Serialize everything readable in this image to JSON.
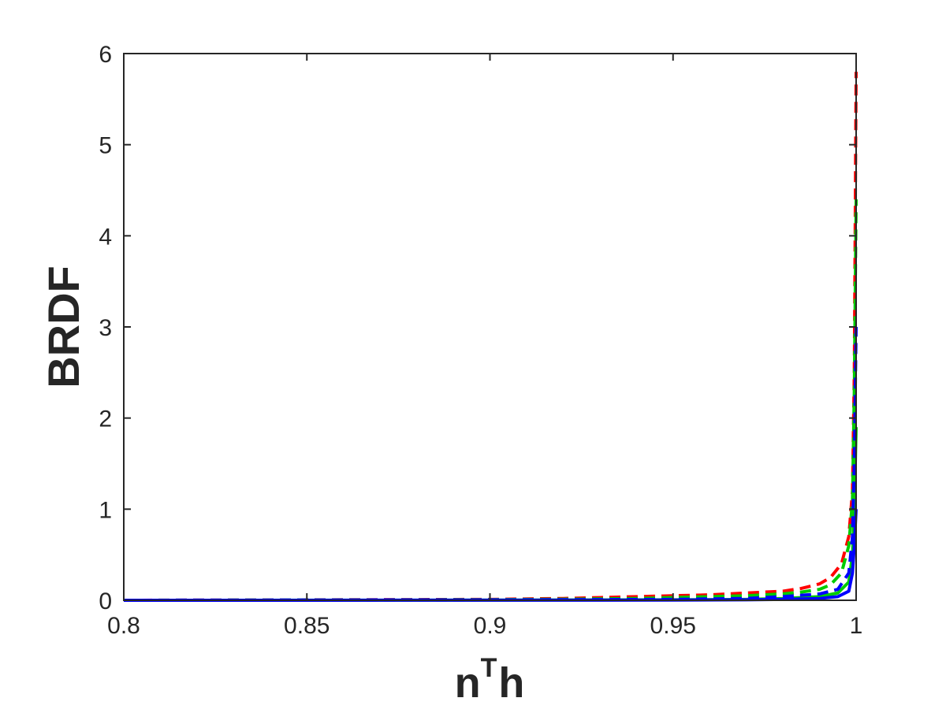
{
  "chart_data": {
    "type": "line",
    "xlabel": "n",
    "xlabel_superscript": "T",
    "xlabel_suffix": "h",
    "ylabel": "BRDF",
    "xlim": [
      0.8,
      1.0
    ],
    "ylim": [
      0,
      6
    ],
    "x_ticks": [
      "0.8",
      "0.85",
      "0.9",
      "0.95",
      "1"
    ],
    "y_ticks": [
      "0",
      "1",
      "2",
      "3",
      "4",
      "5",
      "6"
    ],
    "x_tick_values": [
      0.8,
      0.85,
      0.9,
      0.95,
      1.0
    ],
    "y_tick_values": [
      0,
      1,
      2,
      3,
      4,
      5,
      6
    ],
    "grid": false,
    "series": [
      {
        "color": "#ff0000",
        "style": "dashed",
        "x": [
          0.8,
          0.85,
          0.9,
          0.92,
          0.94,
          0.95,
          0.96,
          0.97,
          0.98,
          0.985,
          0.99,
          0.993,
          0.996,
          0.998,
          0.999,
          0.9995,
          1.0
        ],
        "y": [
          0.0,
          0.005,
          0.01,
          0.02,
          0.04,
          0.05,
          0.06,
          0.08,
          0.1,
          0.13,
          0.18,
          0.25,
          0.4,
          0.7,
          1.2,
          2.5,
          5.8
        ]
      },
      {
        "color": "#00cc00",
        "style": "dashed",
        "x": [
          0.8,
          0.85,
          0.9,
          0.92,
          0.94,
          0.95,
          0.96,
          0.97,
          0.98,
          0.985,
          0.99,
          0.993,
          0.996,
          0.998,
          0.999,
          0.9995,
          1.0
        ],
        "y": [
          0.0,
          0.003,
          0.007,
          0.012,
          0.02,
          0.03,
          0.04,
          0.05,
          0.07,
          0.09,
          0.12,
          0.17,
          0.3,
          0.6,
          1.1,
          2.3,
          4.4
        ]
      },
      {
        "color": "#00cc00",
        "style": "solid",
        "x": [
          0.8,
          0.9,
          0.95,
          0.97,
          0.98,
          0.99,
          0.995,
          0.998,
          0.999,
          0.9995,
          1.0
        ],
        "y": [
          0.0,
          0.002,
          0.005,
          0.01,
          0.02,
          0.04,
          0.08,
          0.2,
          0.5,
          1.0,
          1.9
        ]
      },
      {
        "color": "#0000ff",
        "style": "dashed",
        "x": [
          0.8,
          0.85,
          0.9,
          0.95,
          0.97,
          0.98,
          0.99,
          0.995,
          0.998,
          0.999,
          0.9995,
          1.0
        ],
        "y": [
          0.0,
          0.002,
          0.004,
          0.01,
          0.02,
          0.04,
          0.07,
          0.12,
          0.3,
          0.7,
          1.5,
          3.0
        ]
      },
      {
        "color": "#0000ff",
        "style": "solid",
        "x": [
          0.8,
          0.9,
          0.95,
          0.97,
          0.98,
          0.99,
          0.995,
          0.998,
          0.999,
          0.9995,
          1.0
        ],
        "y": [
          0.0,
          0.001,
          0.002,
          0.005,
          0.01,
          0.02,
          0.04,
          0.1,
          0.3,
          0.6,
          1.0
        ]
      }
    ]
  }
}
